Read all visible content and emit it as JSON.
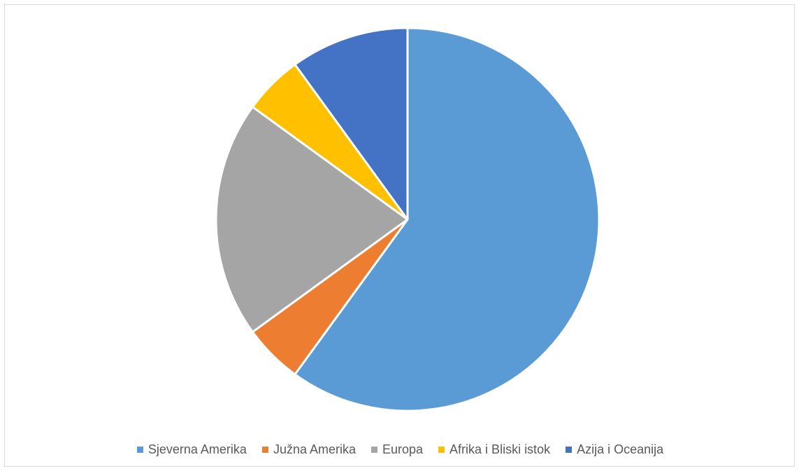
{
  "chart_data": {
    "type": "pie",
    "title": "",
    "start_angle_deg": 0,
    "direction": "clockwise",
    "slice_border_color": "#ffffff",
    "legend_position": "bottom",
    "slices": [
      {
        "label": "Sjeverna Amerika",
        "value": 60,
        "color": "#5B9BD5"
      },
      {
        "label": "Južna Amerika",
        "value": 5,
        "color": "#ED7D31"
      },
      {
        "label": "Europa",
        "value": 20,
        "color": "#A5A5A5"
      },
      {
        "label": "Afrika i Bliski istok",
        "value": 5,
        "color": "#FFC000"
      },
      {
        "label": "Azija i Oceanija",
        "value": 10,
        "color": "#4472C4"
      }
    ]
  }
}
